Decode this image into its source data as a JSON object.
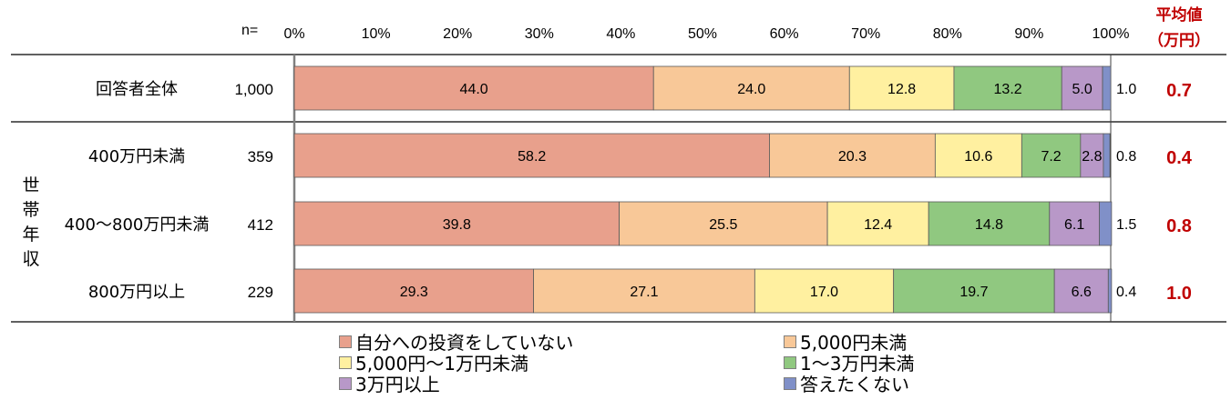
{
  "chart_data": {
    "type": "bar",
    "orientation": "horizontal",
    "stacked": true,
    "percent_axis_ticks": [
      "0%",
      "10%",
      "20%",
      "30%",
      "40%",
      "50%",
      "60%",
      "70%",
      "80%",
      "90%",
      "100%"
    ],
    "n_header": "n=",
    "mean_header": [
      "平均値",
      "（万円）"
    ],
    "group_label": "世帯年収",
    "categories": [
      {
        "label": "回答者全体",
        "n": "1,000",
        "mean": "0.7"
      },
      {
        "label": "400万円未満",
        "n": "359",
        "mean": "0.4"
      },
      {
        "label": "400～800万円未満",
        "n": "412",
        "mean": "0.8"
      },
      {
        "label": "800万円以上",
        "n": "229",
        "mean": "1.0"
      }
    ],
    "series": [
      {
        "name": "自分への投資をしていない",
        "color": "#e8a08c",
        "values": [
          44.0,
          58.2,
          39.8,
          29.3
        ]
      },
      {
        "name": "5,000円未満",
        "color": "#f8c898",
        "values": [
          24.0,
          20.3,
          25.5,
          27.1
        ]
      },
      {
        "name": "5,000円～1万円未満",
        "color": "#fff0a0",
        "values": [
          12.8,
          10.6,
          12.4,
          17.0
        ]
      },
      {
        "name": "1～3万円未満",
        "color": "#90c880",
        "values": [
          13.2,
          7.2,
          14.8,
          19.7
        ]
      },
      {
        "name": "3万円以上",
        "color": "#b898c8",
        "values": [
          5.0,
          2.8,
          6.1,
          6.6
        ]
      },
      {
        "name": "答えたくない",
        "color": "#8090c8",
        "values": [
          1.0,
          0.8,
          1.5,
          0.4
        ]
      }
    ],
    "xlim": [
      0,
      100
    ],
    "mean_color": "#c00000"
  }
}
